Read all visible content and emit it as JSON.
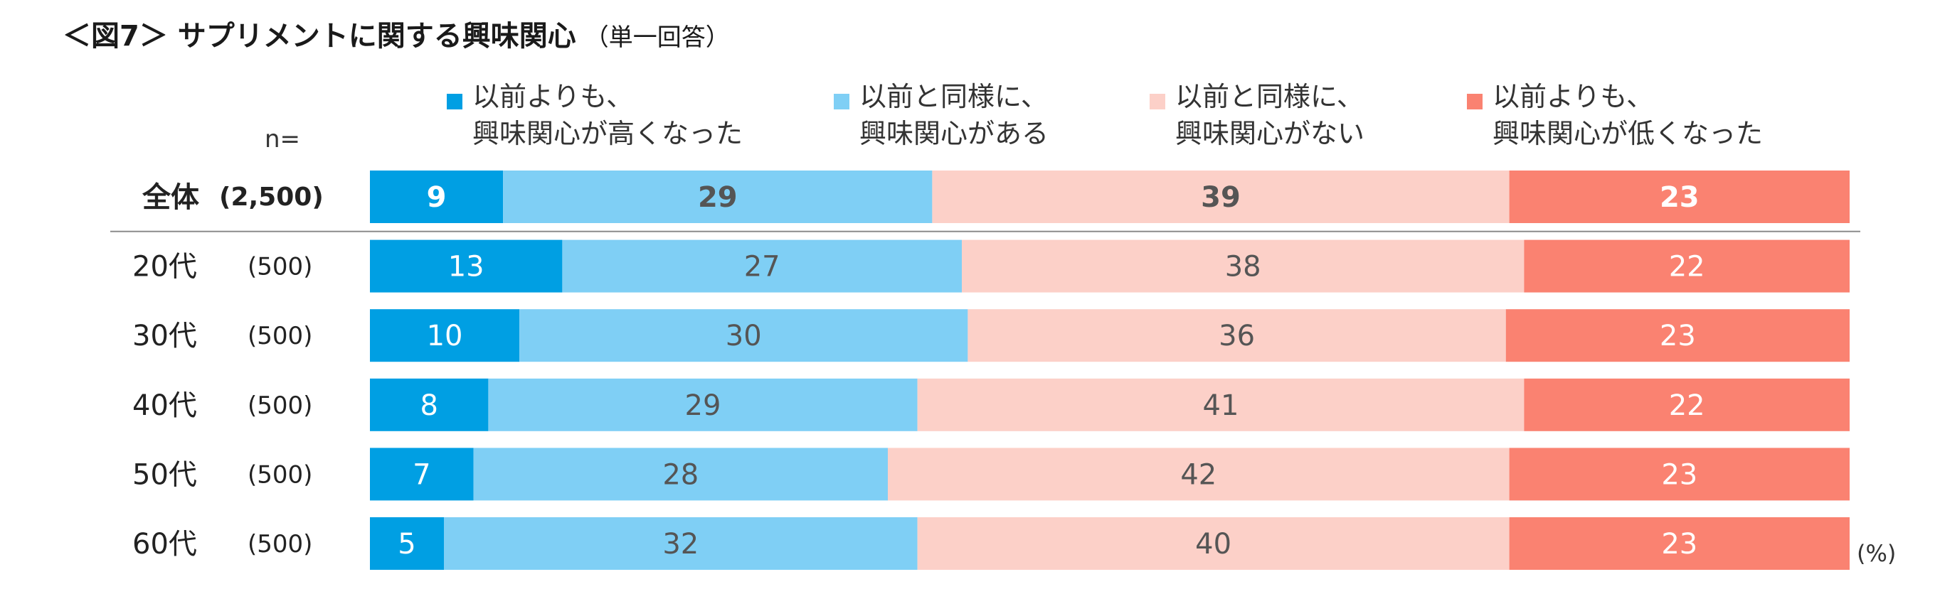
{
  "title": "＜図7＞ サプリメントに関する興味関心",
  "subtitle": "（単一回答）",
  "n_label": "n=",
  "unit_label": "(%)",
  "colors": {
    "increased": "#009fe3",
    "same_interested": "#7fcff5",
    "same_not_interested": "#fcd0c8",
    "decreased": "#fa8271",
    "text_dark": "#555555",
    "text_white": "#ffffff",
    "divider": "#8c8c8c"
  },
  "legend": [
    {
      "line1": "以前よりも、",
      "line2": "興味関心が高くなった",
      "color": "#009fe3"
    },
    {
      "line1": "以前と同様に、",
      "line2": "興味関心がある",
      "color": "#7fcff5"
    },
    {
      "line1": "以前と同様に、",
      "line2": "興味関心がない",
      "color": "#fcd0c8"
    },
    {
      "line1": "以前よりも、",
      "line2": "興味関心が低くなった",
      "color": "#fa8271"
    }
  ],
  "chart_data": {
    "type": "bar",
    "orientation": "horizontal",
    "stacked": true,
    "percent_stacked": true,
    "categories": [
      "全体",
      "20代",
      "30代",
      "40代",
      "50代",
      "60代"
    ],
    "sample_sizes": [
      "(2,500)",
      "(500)",
      "(500)",
      "(500)",
      "(500)",
      "(500)"
    ],
    "series": [
      {
        "name": "以前よりも、興味関心が高くなった",
        "values": [
          9,
          13,
          10,
          8,
          7,
          5
        ]
      },
      {
        "name": "以前と同様に、興味関心がある",
        "values": [
          29,
          27,
          30,
          29,
          28,
          32
        ]
      },
      {
        "name": "以前と同様に、興味関心がない",
        "values": [
          39,
          38,
          36,
          41,
          42,
          40
        ]
      },
      {
        "name": "以前よりも、興味関心が低くなった",
        "values": [
          23,
          22,
          23,
          22,
          23,
          23
        ]
      }
    ],
    "legend_position": "top",
    "grid": false
  }
}
